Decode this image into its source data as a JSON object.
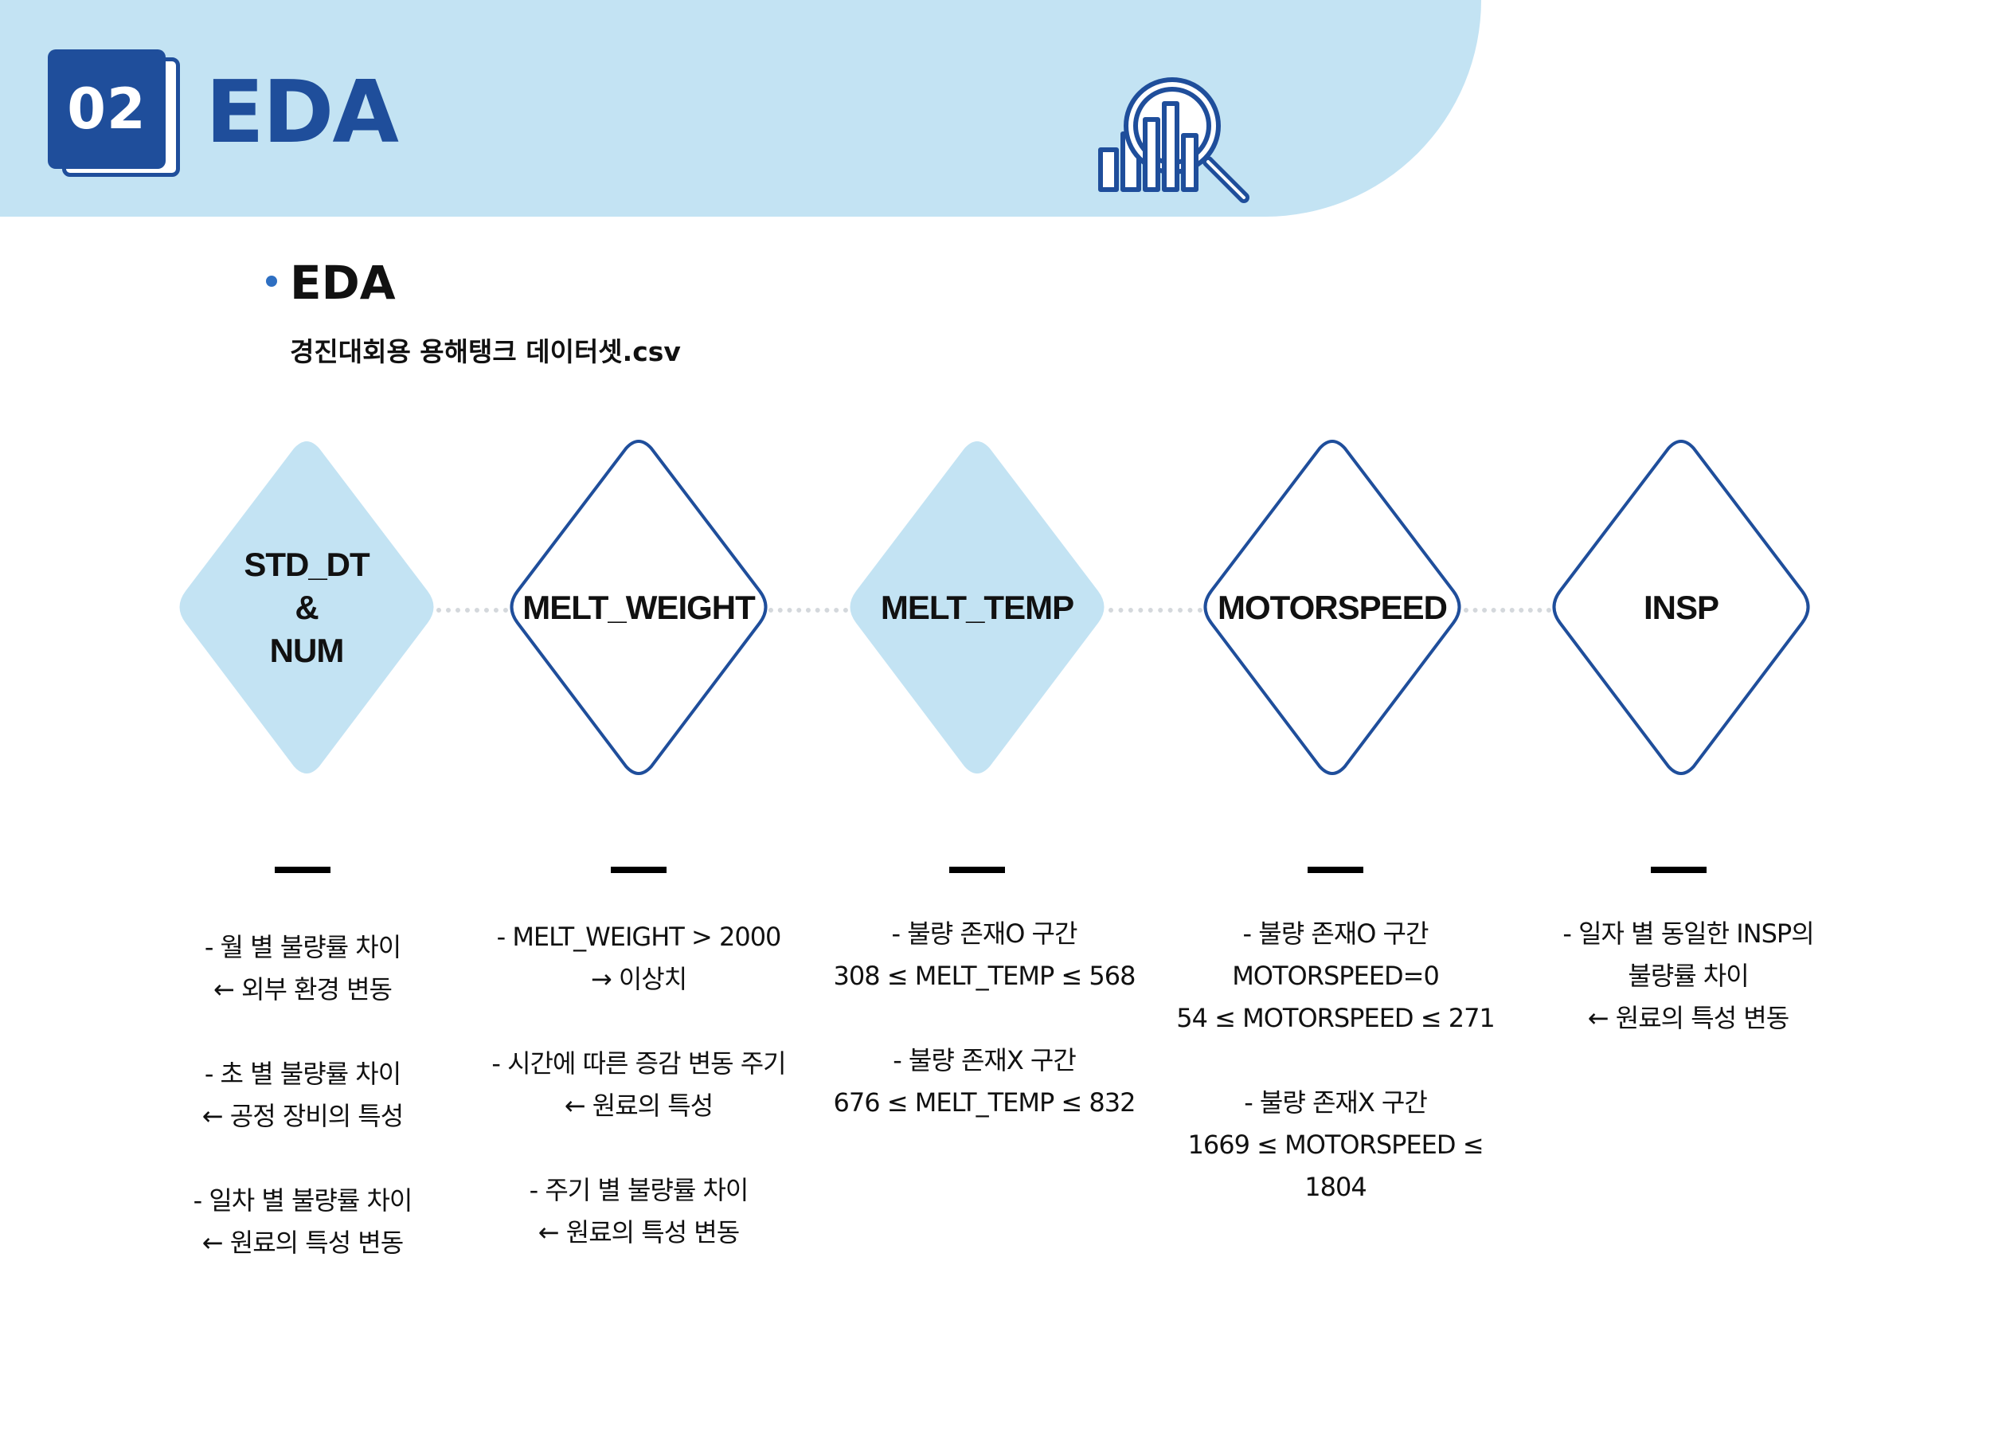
{
  "header": {
    "number": "02",
    "title": "EDA",
    "icon": "magnifier-bar-chart-icon"
  },
  "section": {
    "title": "EDA",
    "dataset": "경진대회용 용해탱크 데이터셋.csv"
  },
  "colors": {
    "primary": "#1f4e9b",
    "light_blue": "#c3e3f3",
    "diamond_fill": "#c3e3f3"
  },
  "nodes": [
    {
      "label": "STD_DT\n&\nNUM",
      "style": "filled",
      "notes": [
        "- 월 별 불량률 차이\n← 외부 환경 변동",
        "- 초 별 불량률 차이\n← 공정 장비의 특성",
        "- 일차 별 불량률 차이\n← 원료의 특성 변동"
      ]
    },
    {
      "label": "MELT_WEIGHT",
      "style": "outline",
      "notes": [
        "-  MELT_WEIGHT > 2000\n→ 이상치",
        "-  시간에 따른 증감 변동 주기\n← 원료의 특성",
        "-  주기 별 불량률 차이\n← 원료의 특성 변동"
      ]
    },
    {
      "label": "MELT_TEMP",
      "style": "filled",
      "notes": [
        "- 불량 존재O 구간\n308 ≤ MELT_TEMP ≤ 568",
        "- 불량 존재X 구간\n676 ≤ MELT_TEMP ≤ 832"
      ]
    },
    {
      "label": "MOTORSPEED",
      "style": "outline",
      "notes": [
        "-  불량 존재O 구간\nMOTORSPEED=0\n54 ≤ MOTORSPEED ≤ 271",
        "- 불량 존재X 구간\n1669 ≤ MOTORSPEED ≤ 1804"
      ]
    },
    {
      "label": "INSP",
      "style": "outline",
      "notes": [
        "-  일자 별 동일한 INSP의\n불량률 차이\n← 원료의 특성 변동"
      ]
    }
  ]
}
